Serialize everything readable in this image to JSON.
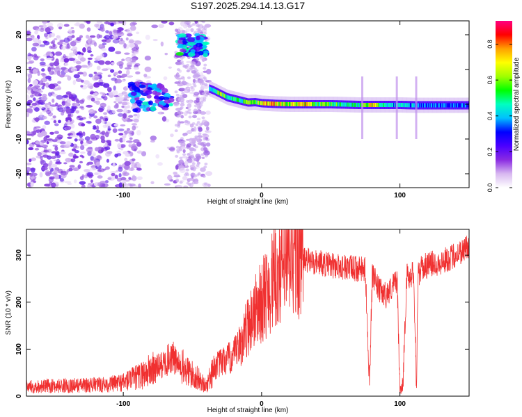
{
  "title": "S197.2025.294.14.13.G17",
  "chart_data": [
    {
      "type": "heatmap",
      "panel": "top",
      "xlabel": "Height of straight line (km)",
      "ylabel": "Frequency (Hz)",
      "xlim": [
        -170,
        150
      ],
      "ylim": [
        -24,
        24
      ],
      "xticks": [
        -100,
        0,
        100
      ],
      "yticks": [
        -20,
        -10,
        0,
        10,
        20
      ],
      "colorbar": {
        "label": "Normalized spectral amplitude",
        "range": [
          0.0,
          0.93
        ],
        "ticks": [
          0.0,
          0.2,
          0.4,
          0.6,
          0.8
        ],
        "colormap": [
          "#ffffff",
          "#d8b8f0",
          "#8a2be2",
          "#4b00ff",
          "#0000ff",
          "#00c0ff",
          "#00ffc0",
          "#00ff00",
          "#a0ff00",
          "#ffff00",
          "#ffa000",
          "#ff0000",
          "#ff0080"
        ]
      },
      "ridge": {
        "x": [
          -38,
          -35,
          -30,
          -25,
          -20,
          -15,
          -10,
          -5,
          0,
          10,
          20,
          30,
          40,
          50,
          60,
          70,
          80,
          90,
          100,
          110,
          120,
          130,
          140,
          150
        ],
        "freq": [
          4.5,
          4,
          3,
          2,
          1.5,
          1,
          0.5,
          0.6,
          0.3,
          0.1,
          0,
          0,
          0,
          0,
          -0.1,
          -0.2,
          -0.2,
          -0.2,
          -0.2,
          -0.3,
          -0.3,
          -0.3,
          -0.3,
          -0.3
        ],
        "amplitude": [
          0.5,
          0.5,
          0.7,
          0.55,
          0.6,
          0.5,
          0.7,
          0.6,
          0.85,
          0.85,
          0.7,
          0.85,
          0.65,
          0.6,
          0.55,
          0.55,
          0.8,
          0.5,
          0.45,
          0.45,
          0.4,
          0.4,
          0.4,
          0.4
        ]
      },
      "features": [
        {
          "x": [
            -95,
            -65
          ],
          "freq": [
            -2,
            6
          ],
          "amplitude": 0.35
        },
        {
          "x": [
            -60,
            -40
          ],
          "freq": [
            14,
            20
          ],
          "amplitude": 0.4
        }
      ]
    },
    {
      "type": "line",
      "panel": "bottom",
      "xlabel": "Height of straight line (km)",
      "ylabel": "SNR (10 * v/v)",
      "xlim": [
        -170,
        150
      ],
      "ylim": [
        0,
        355
      ],
      "xticks": [
        -100,
        0,
        100
      ],
      "yticks": [
        0,
        100,
        200,
        300
      ],
      "color": "#f03030",
      "series": [
        {
          "name": "SNR",
          "x": [
            -170,
            -150,
            -130,
            -110,
            -100,
            -90,
            -80,
            -70,
            -65,
            -60,
            -50,
            -45,
            -40,
            -35,
            -30,
            -20,
            -15,
            -10,
            -5,
            0,
            5,
            10,
            15,
            20,
            25,
            30,
            40,
            50,
            60,
            70,
            75,
            78,
            80,
            82,
            85,
            90,
            95,
            98,
            100,
            102,
            105,
            110,
            112,
            113,
            115,
            120,
            130,
            140,
            150
          ],
          "values": [
            20,
            22,
            23,
            25,
            30,
            40,
            55,
            70,
            85,
            65,
            45,
            35,
            20,
            60,
            70,
            85,
            110,
            150,
            180,
            200,
            230,
            255,
            275,
            285,
            295,
            290,
            285,
            278,
            275,
            270,
            268,
            30,
            255,
            245,
            225,
            215,
            235,
            250,
            10,
            25,
            255,
            260,
            20,
            255,
            270,
            280,
            285,
            300,
            320
          ]
        }
      ]
    }
  ]
}
